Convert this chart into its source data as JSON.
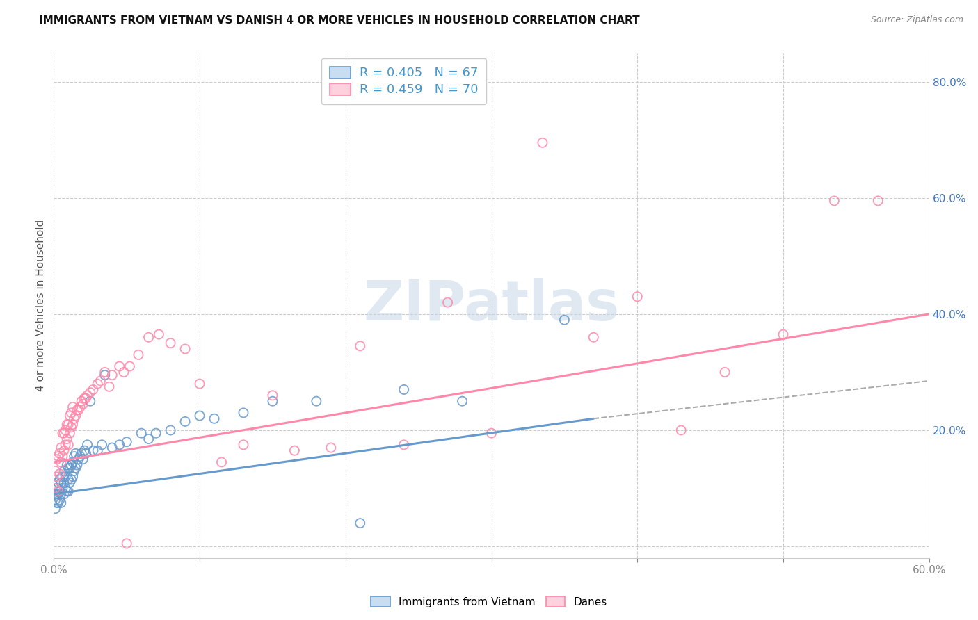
{
  "title": "IMMIGRANTS FROM VIETNAM VS DANISH 4 OR MORE VEHICLES IN HOUSEHOLD CORRELATION CHART",
  "source": "Source: ZipAtlas.com",
  "ylabel": "4 or more Vehicles in Household",
  "legend1_R": "0.405",
  "legend1_N": "67",
  "legend2_R": "0.459",
  "legend2_N": "70",
  "color_blue": "#6699CC",
  "color_pink": "#FF88AA",
  "legend_label1": "Immigrants from Vietnam",
  "legend_label2": "Danes",
  "xlim": [
    0.0,
    0.6
  ],
  "ylim": [
    -0.02,
    0.85
  ],
  "blue_scatter_x": [
    0.001,
    0.001,
    0.001,
    0.002,
    0.002,
    0.002,
    0.003,
    0.003,
    0.003,
    0.004,
    0.004,
    0.004,
    0.005,
    0.005,
    0.005,
    0.006,
    0.006,
    0.007,
    0.007,
    0.007,
    0.008,
    0.008,
    0.009,
    0.009,
    0.01,
    0.01,
    0.01,
    0.011,
    0.011,
    0.012,
    0.012,
    0.013,
    0.013,
    0.014,
    0.014,
    0.015,
    0.015,
    0.016,
    0.017,
    0.018,
    0.019,
    0.02,
    0.021,
    0.022,
    0.023,
    0.025,
    0.027,
    0.03,
    0.033,
    0.035,
    0.04,
    0.045,
    0.05,
    0.06,
    0.065,
    0.07,
    0.08,
    0.09,
    0.1,
    0.11,
    0.13,
    0.15,
    0.18,
    0.21,
    0.24,
    0.28,
    0.35
  ],
  "blue_scatter_y": [
    0.065,
    0.08,
    0.09,
    0.075,
    0.09,
    0.1,
    0.075,
    0.09,
    0.11,
    0.08,
    0.095,
    0.115,
    0.075,
    0.09,
    0.11,
    0.1,
    0.12,
    0.09,
    0.11,
    0.13,
    0.1,
    0.12,
    0.095,
    0.14,
    0.095,
    0.115,
    0.135,
    0.11,
    0.135,
    0.115,
    0.14,
    0.12,
    0.145,
    0.13,
    0.155,
    0.135,
    0.16,
    0.14,
    0.15,
    0.155,
    0.16,
    0.15,
    0.165,
    0.16,
    0.175,
    0.25,
    0.165,
    0.165,
    0.175,
    0.295,
    0.17,
    0.175,
    0.18,
    0.195,
    0.185,
    0.195,
    0.2,
    0.215,
    0.225,
    0.22,
    0.23,
    0.25,
    0.25,
    0.04,
    0.27,
    0.25,
    0.39
  ],
  "pink_scatter_x": [
    0.001,
    0.001,
    0.002,
    0.002,
    0.003,
    0.003,
    0.004,
    0.004,
    0.005,
    0.005,
    0.006,
    0.006,
    0.007,
    0.007,
    0.008,
    0.008,
    0.009,
    0.009,
    0.01,
    0.01,
    0.011,
    0.011,
    0.012,
    0.012,
    0.013,
    0.013,
    0.014,
    0.015,
    0.016,
    0.017,
    0.018,
    0.019,
    0.02,
    0.021,
    0.022,
    0.023,
    0.025,
    0.027,
    0.03,
    0.032,
    0.035,
    0.038,
    0.04,
    0.045,
    0.048,
    0.052,
    0.058,
    0.065,
    0.072,
    0.08,
    0.09,
    0.1,
    0.115,
    0.13,
    0.15,
    0.165,
    0.19,
    0.21,
    0.24,
    0.27,
    0.3,
    0.335,
    0.37,
    0.4,
    0.43,
    0.46,
    0.5,
    0.535,
    0.565,
    0.05
  ],
  "pink_scatter_y": [
    0.1,
    0.13,
    0.12,
    0.15,
    0.095,
    0.155,
    0.125,
    0.16,
    0.145,
    0.17,
    0.155,
    0.195,
    0.165,
    0.195,
    0.175,
    0.2,
    0.185,
    0.21,
    0.175,
    0.21,
    0.195,
    0.225,
    0.205,
    0.23,
    0.21,
    0.24,
    0.22,
    0.225,
    0.235,
    0.235,
    0.24,
    0.25,
    0.245,
    0.255,
    0.255,
    0.26,
    0.265,
    0.27,
    0.28,
    0.285,
    0.3,
    0.275,
    0.295,
    0.31,
    0.3,
    0.31,
    0.33,
    0.36,
    0.365,
    0.35,
    0.34,
    0.28,
    0.145,
    0.175,
    0.26,
    0.165,
    0.17,
    0.345,
    0.175,
    0.42,
    0.195,
    0.695,
    0.36,
    0.43,
    0.2,
    0.3,
    0.365,
    0.595,
    0.595,
    0.005
  ],
  "blue_line_x": [
    0.0,
    0.37
  ],
  "blue_line_y": [
    0.09,
    0.22
  ],
  "pink_line_x": [
    0.0,
    0.6
  ],
  "pink_line_y": [
    0.145,
    0.4
  ],
  "dashed_line_x": [
    0.37,
    0.6
  ],
  "dashed_line_y": [
    0.22,
    0.285
  ]
}
